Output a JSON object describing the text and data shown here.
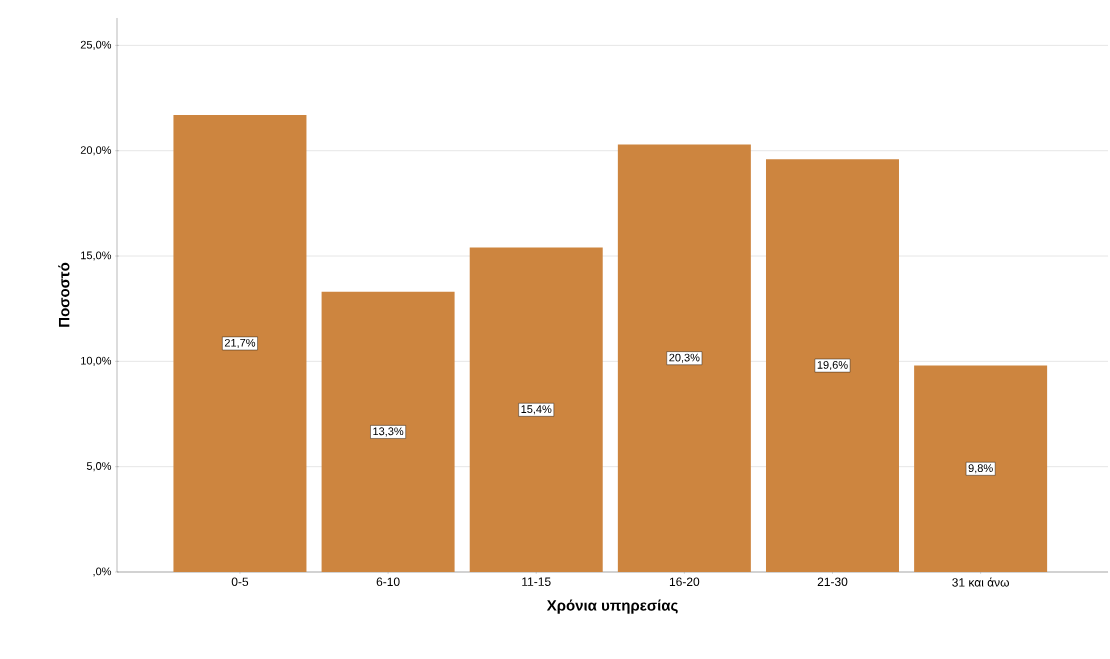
{
  "chart_data": {
    "type": "bar",
    "xlabel": "Χρόνια υπηρεσίας",
    "ylabel": "Ποσοστό",
    "categories": [
      "0-5",
      "6-10",
      "11-15",
      "16-20",
      "21-30",
      "31 και άνω"
    ],
    "values": [
      21.7,
      13.3,
      15.4,
      20.3,
      19.6,
      9.8
    ],
    "value_labels": [
      "21,7%",
      "13,3%",
      "15,4%",
      "20,3%",
      "19,6%",
      "9,8%"
    ],
    "color": "#cd853f",
    "ylim": [
      0,
      26.3
    ],
    "yticks": [
      {
        "value": 0,
        "label": ",0%"
      },
      {
        "value": 5,
        "label": "5,0%"
      },
      {
        "value": 10,
        "label": "10,0%"
      },
      {
        "value": 15,
        "label": "15,0%"
      },
      {
        "value": 20,
        "label": "20,0%"
      },
      {
        "value": 25,
        "label": "25,0%"
      }
    ],
    "grid": "y"
  }
}
